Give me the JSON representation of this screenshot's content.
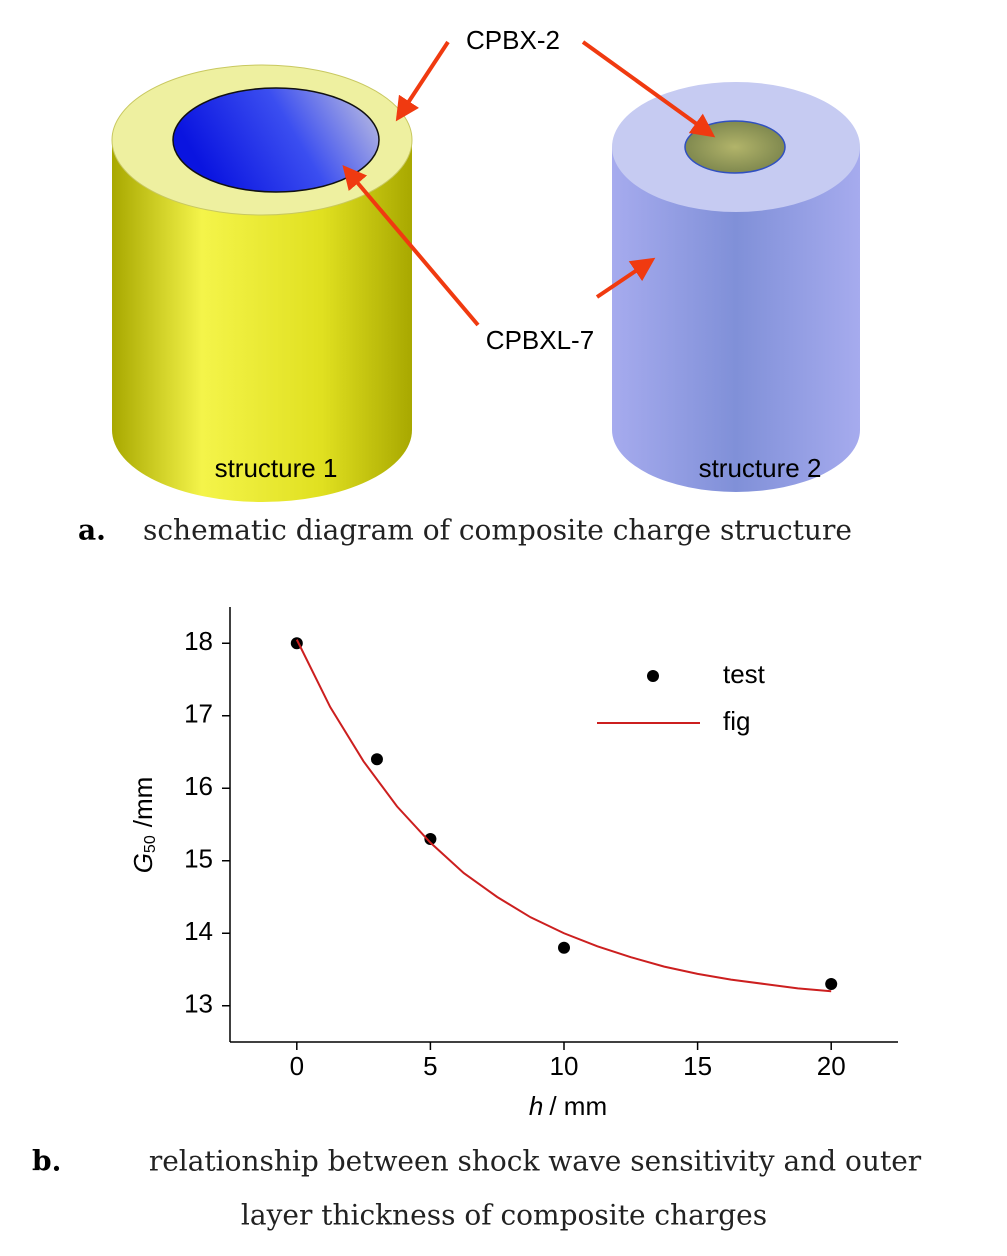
{
  "diagram": {
    "labels": [
      "CPBX-2",
      "CPBXL-7"
    ],
    "structures": [
      "structure 1",
      "structure 2"
    ],
    "caption": {
      "letter": "a.",
      "text": "schematic diagram of composite charge structure"
    }
  },
  "chart_data": {
    "type": "scatter",
    "x": [
      0,
      3,
      5,
      10,
      20
    ],
    "series": [
      {
        "name": "test",
        "color": "#000000",
        "values": [
          18,
          16.4,
          15.3,
          13.8,
          13.3
        ]
      },
      {
        "name": "fig",
        "color": "#cc1f1f",
        "type": "line",
        "x": [
          0,
          1.25,
          2.5,
          3.75,
          5,
          6.25,
          7.5,
          8.75,
          10,
          11.25,
          12.5,
          13.75,
          15,
          16.25,
          17.5,
          18.75,
          20
        ],
        "values": [
          18.05,
          17.12,
          16.37,
          15.75,
          15.25,
          14.83,
          14.5,
          14.22,
          14.0,
          13.82,
          13.67,
          13.54,
          13.44,
          13.36,
          13.3,
          13.24,
          13.2
        ]
      }
    ],
    "xlim": [
      -2.5,
      22.5
    ],
    "ylim": [
      12.5,
      18.5
    ],
    "xticks": [
      0,
      5,
      10,
      15,
      20
    ],
    "yticks": [
      13,
      14,
      15,
      16,
      17,
      18
    ],
    "xlabel": {
      "symbol": "h",
      "unit": "/ mm"
    },
    "ylabel": {
      "symbol": "G",
      "subscript": "50",
      "unit": "/mm"
    },
    "legend": "upper right",
    "caption": {
      "letter": "b.",
      "lines": [
        "relationship between shock wave sensitivity and outer",
        "layer thickness of composite charges"
      ]
    }
  }
}
